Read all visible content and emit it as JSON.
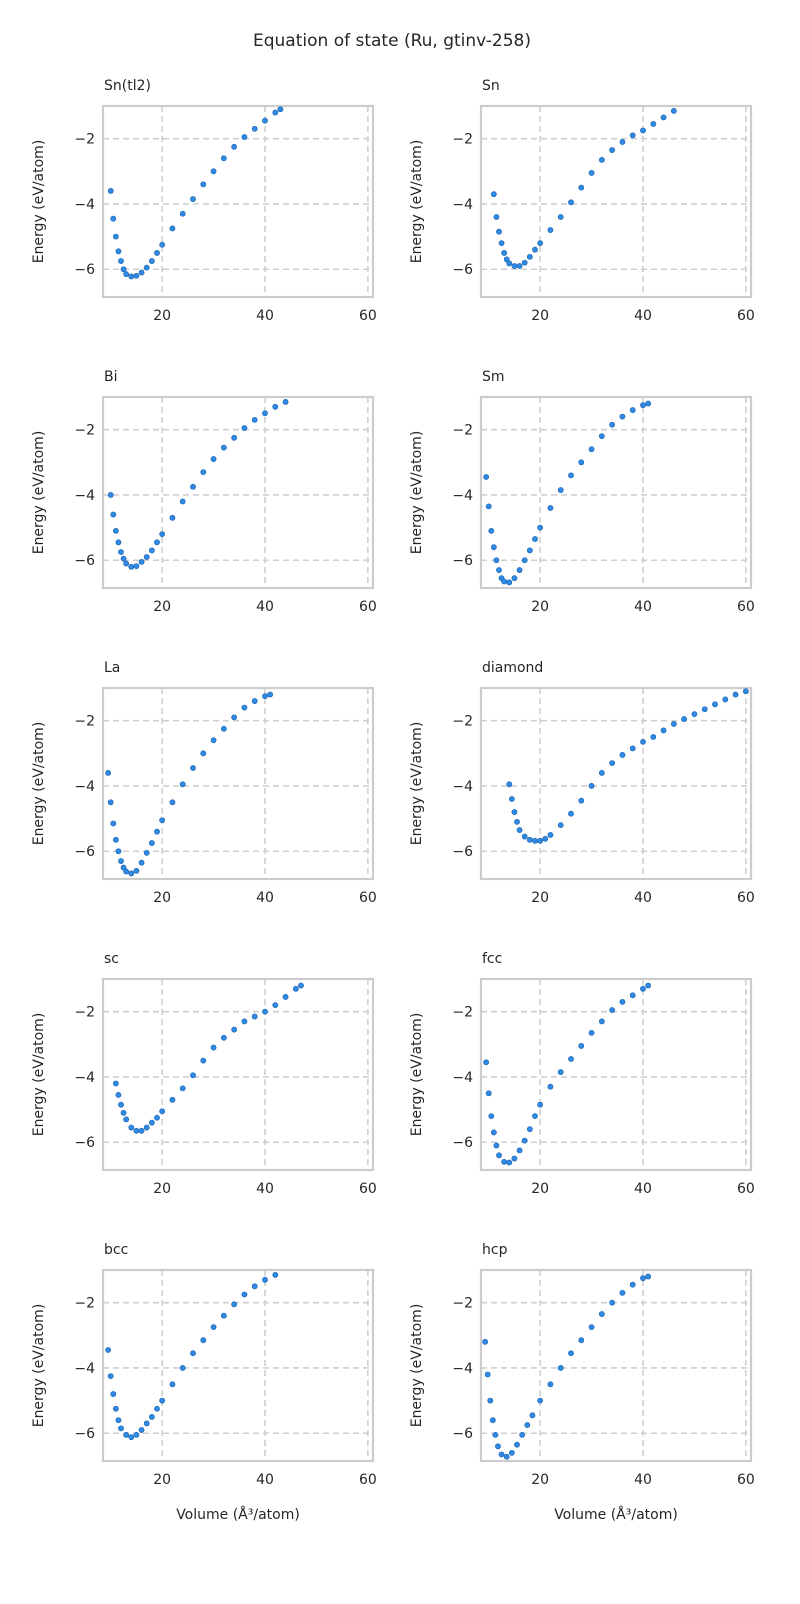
{
  "title": "Equation of state (Ru, gtinv-258)",
  "chart_data": {
    "type": "scatter",
    "layout": "5 rows x 2 columns",
    "xlabel": "Volume (Å³/atom)",
    "ylabel": "Energy (eV/atom)",
    "xlim": [
      8.5,
      61
    ],
    "ylim": [
      -6.85,
      -1.0
    ],
    "xticks": [
      20,
      40,
      60
    ],
    "yticks": [
      -2,
      -4,
      -6
    ],
    "grid": true,
    "marker_color": "#2f8ae6",
    "marker_edge_color": "#1a5fa8",
    "panels": [
      {
        "title": "Sn(tl2)",
        "x": [
          10,
          10.5,
          11,
          11.5,
          12,
          12.5,
          13,
          14,
          15,
          16,
          17,
          18,
          19,
          20,
          22,
          24,
          26,
          28,
          30,
          32,
          34,
          36,
          38,
          40,
          42,
          43
        ],
        "y": [
          -3.6,
          -4.45,
          -5.0,
          -5.45,
          -5.75,
          -6.0,
          -6.15,
          -6.22,
          -6.2,
          -6.1,
          -5.95,
          -5.75,
          -5.5,
          -5.25,
          -4.75,
          -4.3,
          -3.85,
          -3.4,
          -3.0,
          -2.6,
          -2.25,
          -1.95,
          -1.7,
          -1.45,
          -1.2,
          -1.1
        ]
      },
      {
        "title": "Sn",
        "x": [
          11,
          11.5,
          12,
          12.5,
          13,
          13.5,
          14,
          15,
          16,
          17,
          18,
          19,
          20,
          22,
          24,
          26,
          28,
          30,
          32,
          34,
          36,
          38,
          40,
          42,
          44,
          46
        ],
        "y": [
          -3.7,
          -4.4,
          -4.85,
          -5.2,
          -5.5,
          -5.7,
          -5.82,
          -5.9,
          -5.9,
          -5.8,
          -5.62,
          -5.4,
          -5.2,
          -4.8,
          -4.4,
          -3.95,
          -3.5,
          -3.05,
          -2.65,
          -2.35,
          -2.1,
          -1.9,
          -1.75,
          -1.55,
          -1.35,
          -1.15
        ]
      },
      {
        "title": "Bi",
        "x": [
          10,
          10.5,
          11,
          11.5,
          12,
          12.5,
          13,
          14,
          15,
          16,
          17,
          18,
          19,
          20,
          22,
          24,
          26,
          28,
          30,
          32,
          34,
          36,
          38,
          40,
          42,
          44
        ],
        "y": [
          -4.0,
          -4.6,
          -5.1,
          -5.45,
          -5.75,
          -5.95,
          -6.1,
          -6.2,
          -6.18,
          -6.05,
          -5.9,
          -5.7,
          -5.45,
          -5.2,
          -4.7,
          -4.2,
          -3.75,
          -3.3,
          -2.9,
          -2.55,
          -2.25,
          -1.95,
          -1.7,
          -1.5,
          -1.3,
          -1.15
        ]
      },
      {
        "title": "Sm",
        "x": [
          9.5,
          10,
          10.5,
          11,
          11.5,
          12,
          12.5,
          13,
          14,
          15,
          16,
          17,
          18,
          19,
          20,
          22,
          24,
          26,
          28,
          30,
          32,
          34,
          36,
          38,
          40,
          41
        ],
        "y": [
          -3.45,
          -4.35,
          -5.1,
          -5.6,
          -6.0,
          -6.3,
          -6.55,
          -6.65,
          -6.68,
          -6.55,
          -6.3,
          -6.0,
          -5.7,
          -5.35,
          -5.0,
          -4.4,
          -3.85,
          -3.4,
          -3.0,
          -2.6,
          -2.2,
          -1.85,
          -1.6,
          -1.4,
          -1.25,
          -1.2
        ]
      },
      {
        "title": "La",
        "x": [
          9.5,
          10,
          10.5,
          11,
          11.5,
          12,
          12.5,
          13,
          14,
          15,
          16,
          17,
          18,
          19,
          20,
          22,
          24,
          26,
          28,
          30,
          32,
          34,
          36,
          38,
          40,
          41
        ],
        "y": [
          -3.6,
          -4.5,
          -5.15,
          -5.65,
          -6.0,
          -6.3,
          -6.5,
          -6.62,
          -6.68,
          -6.6,
          -6.35,
          -6.05,
          -5.75,
          -5.4,
          -5.05,
          -4.5,
          -3.95,
          -3.45,
          -3.0,
          -2.6,
          -2.25,
          -1.9,
          -1.6,
          -1.4,
          -1.25,
          -1.2
        ]
      },
      {
        "title": "diamond",
        "x": [
          14,
          14.5,
          15,
          15.5,
          16,
          17,
          18,
          19,
          20,
          21,
          22,
          24,
          26,
          28,
          30,
          32,
          34,
          36,
          38,
          40,
          42,
          44,
          46,
          48,
          50,
          52,
          54,
          56,
          58,
          60
        ],
        "y": [
          -3.95,
          -4.4,
          -4.8,
          -5.1,
          -5.35,
          -5.55,
          -5.65,
          -5.68,
          -5.68,
          -5.62,
          -5.5,
          -5.2,
          -4.85,
          -4.45,
          -4.0,
          -3.6,
          -3.3,
          -3.05,
          -2.85,
          -2.65,
          -2.5,
          -2.3,
          -2.1,
          -1.95,
          -1.8,
          -1.65,
          -1.5,
          -1.35,
          -1.2,
          -1.1
        ]
      },
      {
        "title": "sc",
        "x": [
          11,
          11.5,
          12,
          12.5,
          13,
          14,
          15,
          16,
          17,
          18,
          19,
          20,
          22,
          24,
          26,
          28,
          30,
          32,
          34,
          36,
          38,
          40,
          42,
          44,
          46,
          47
        ],
        "y": [
          -4.2,
          -4.55,
          -4.85,
          -5.1,
          -5.3,
          -5.55,
          -5.65,
          -5.65,
          -5.55,
          -5.4,
          -5.25,
          -5.05,
          -4.7,
          -4.35,
          -3.95,
          -3.5,
          -3.1,
          -2.8,
          -2.55,
          -2.3,
          -2.15,
          -2.0,
          -1.8,
          -1.55,
          -1.3,
          -1.2
        ]
      },
      {
        "title": "fcc",
        "x": [
          9.5,
          10,
          10.5,
          11,
          11.5,
          12,
          13,
          14,
          15,
          16,
          17,
          18,
          19,
          20,
          22,
          24,
          26,
          28,
          30,
          32,
          34,
          36,
          38,
          40,
          41
        ],
        "y": [
          -3.55,
          -4.5,
          -5.2,
          -5.7,
          -6.1,
          -6.4,
          -6.6,
          -6.62,
          -6.5,
          -6.25,
          -5.95,
          -5.6,
          -5.2,
          -4.85,
          -4.3,
          -3.85,
          -3.45,
          -3.05,
          -2.65,
          -2.3,
          -1.95,
          -1.7,
          -1.5,
          -1.3,
          -1.2
        ]
      },
      {
        "title": "bcc",
        "x": [
          9.5,
          10,
          10.5,
          11,
          11.5,
          12,
          13,
          14,
          15,
          16,
          17,
          18,
          19,
          20,
          22,
          24,
          26,
          28,
          30,
          32,
          34,
          36,
          38,
          40,
          42
        ],
        "y": [
          -3.45,
          -4.25,
          -4.8,
          -5.25,
          -5.6,
          -5.85,
          -6.05,
          -6.12,
          -6.05,
          -5.9,
          -5.7,
          -5.5,
          -5.25,
          -5.0,
          -4.5,
          -4.0,
          -3.55,
          -3.15,
          -2.75,
          -2.4,
          -2.05,
          -1.75,
          -1.5,
          -1.3,
          -1.15
        ]
      },
      {
        "title": "hcp",
        "x": [
          9.3,
          9.8,
          10.3,
          10.8,
          11.3,
          11.8,
          12.5,
          13.5,
          14.5,
          15.5,
          16.5,
          17.5,
          18.5,
          20,
          22,
          24,
          26,
          28,
          30,
          32,
          34,
          36,
          38,
          40,
          41
        ],
        "y": [
          -3.2,
          -4.2,
          -5.0,
          -5.6,
          -6.05,
          -6.4,
          -6.65,
          -6.72,
          -6.6,
          -6.35,
          -6.05,
          -5.75,
          -5.45,
          -5.0,
          -4.5,
          -4.0,
          -3.55,
          -3.15,
          -2.75,
          -2.35,
          -2.0,
          -1.7,
          -1.45,
          -1.25,
          -1.2
        ]
      }
    ]
  }
}
